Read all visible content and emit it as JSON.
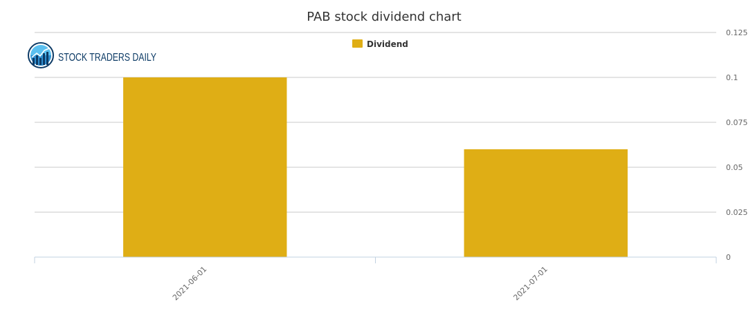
{
  "chart_data": {
    "type": "bar",
    "title": "PAB stock dividend chart",
    "categories": [
      "2021-06-01",
      "2021-07-01"
    ],
    "series": [
      {
        "name": "Dividend",
        "values": [
          0.1,
          0.06
        ],
        "color": "#dfae15"
      }
    ],
    "ylim": [
      0,
      0.125
    ],
    "yticks": [
      0,
      0.025,
      0.05,
      0.075,
      0.1,
      0.125
    ],
    "ytick_labels": [
      "0",
      "0.025",
      "0.05",
      "0.075",
      "0.1",
      "0.125"
    ],
    "xlabel": "",
    "ylabel": "",
    "grid": true,
    "legend_position": "top-center",
    "y_axis_side": "right"
  },
  "logo": {
    "text": "STOCK TRADERS DAILY",
    "icon": "stock-chart-logo-icon",
    "colors": {
      "ring": "#0d3b66",
      "fill": "#5bc0f0",
      "text": "#0d3b66"
    }
  }
}
